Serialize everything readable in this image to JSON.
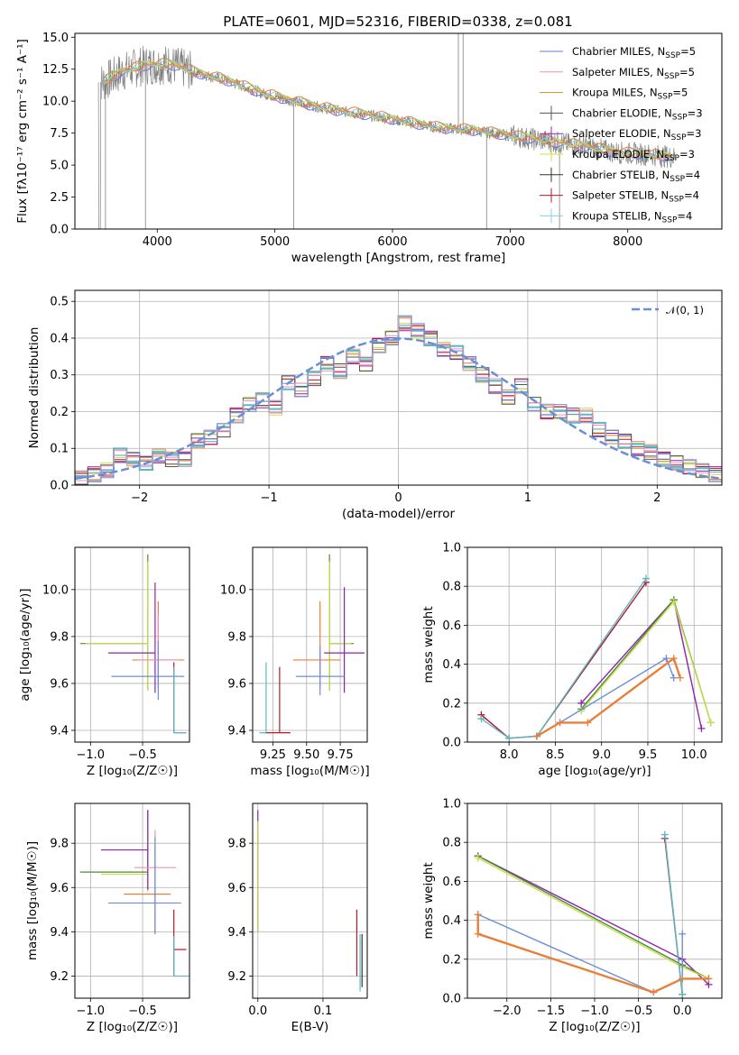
{
  "colors": {
    "chabrier_miles": "#5b7fd6",
    "salpeter_miles": "#f08fb3",
    "kroupa_miles": "#c9902d",
    "chabrier_elodie": "#555555",
    "salpeter_elodie": "#8e24aa",
    "kroupa_elodie": "#c8e04a",
    "chabrier_stelib": "#333333",
    "salpeter_stelib": "#b2182b",
    "kroupa_stelib": "#80d4e0",
    "normal": "#6a8fd8",
    "spectrum": "#808080",
    "orange": "#e8803a",
    "blue": "#6a8fd8",
    "purple": "#8e24aa",
    "yellow": "#c8e04a",
    "green": "#4e8a3a",
    "teal": "#5ab8c4"
  },
  "chart_data": [
    {
      "id": "spectrum",
      "type": "line",
      "title": "PLATE=0601, MJD=52316, FIBERID=0338, z=0.081",
      "xlabel": "wavelength [Angstrom, rest frame]",
      "ylabel": "Flux [fλ10⁻¹⁷ erg cm⁻² s⁻¹ A⁻¹]",
      "xlim": [
        3300,
        8800
      ],
      "ylim": [
        0,
        15.3
      ],
      "xticks": [
        4000,
        5000,
        6000,
        7000,
        8000
      ],
      "yticks": [
        0.0,
        2.5,
        5.0,
        7.5,
        10.0,
        12.5,
        15.0
      ],
      "ytick_labels": [
        "0.0",
        "2.5",
        "5.0",
        "7.5",
        "10.0",
        "12.5",
        "15.0"
      ],
      "legend": "top-right",
      "legend_entries": [
        "Chabrier MILES, N_SSP=5",
        "Salpeter MILES, N_SSP=5",
        "Kroupa MILES, N_SSP=5",
        "Chabrier ELODIE, N_SSP=3",
        "Salpeter ELODIE, N_SSP=3",
        "Kroupa ELODIE, N_SSP=3",
        "Chabrier STELIB, N_SSP=4",
        "Salpeter STELIB, N_SSP=4",
        "Kroupa STELIB, N_SSP=4"
      ],
      "model_x": [
        3550,
        3700,
        3900,
        4100,
        4300,
        4600,
        4900,
        5200,
        5500,
        5800,
        6100,
        6400,
        6700,
        7000,
        7300,
        7600,
        7900,
        8200,
        8400
      ],
      "model_y": [
        11.5,
        12.3,
        12.8,
        12.9,
        12.3,
        11.6,
        10.6,
        9.9,
        9.3,
        8.9,
        8.4,
        7.9,
        7.7,
        7.3,
        6.9,
        6.5,
        6.0,
        5.8,
        5.6
      ]
    },
    {
      "id": "residuals",
      "type": "line",
      "xlabel": "(data-model)/error",
      "ylabel": "Normed distribution",
      "xlim": [
        -2.5,
        2.5
      ],
      "ylim": [
        0,
        0.53
      ],
      "xticks": [
        -2,
        -1,
        0,
        1,
        2
      ],
      "xtick_labels": [
        "−2",
        "−1",
        "0",
        "1",
        "2"
      ],
      "yticks": [
        0.0,
        0.1,
        0.2,
        0.3,
        0.4,
        0.5
      ],
      "ytick_labels": [
        "0.0",
        "0.1",
        "0.2",
        "0.3",
        "0.4",
        "0.5"
      ],
      "legend": "top-right",
      "legend_entries": [
        "𝒩(0, 1)"
      ],
      "bin_edges": [
        -2.5,
        -2.4,
        -2.3,
        -2.2,
        -2.1,
        -2.0,
        -1.9,
        -1.8,
        -1.7,
        -1.6,
        -1.5,
        -1.4,
        -1.3,
        -1.2,
        -1.1,
        -1.0,
        -0.9,
        -0.8,
        -0.7,
        -0.6,
        -0.5,
        -0.4,
        -0.3,
        -0.2,
        -0.1,
        0.0,
        0.1,
        0.2,
        0.3,
        0.4,
        0.5,
        0.6,
        0.7,
        0.8,
        0.9,
        1.0,
        1.1,
        1.2,
        1.3,
        1.4,
        1.5,
        1.6,
        1.7,
        1.8,
        1.9,
        2.0,
        2.1,
        2.2,
        2.3,
        2.4,
        2.5
      ],
      "hist_values": [
        0.02,
        0.03,
        0.04,
        0.08,
        0.07,
        0.06,
        0.08,
        0.07,
        0.07,
        0.12,
        0.13,
        0.15,
        0.19,
        0.22,
        0.23,
        0.21,
        0.28,
        0.26,
        0.29,
        0.33,
        0.31,
        0.35,
        0.33,
        0.38,
        0.4,
        0.44,
        0.42,
        0.4,
        0.37,
        0.36,
        0.33,
        0.3,
        0.27,
        0.24,
        0.27,
        0.22,
        0.2,
        0.2,
        0.19,
        0.19,
        0.15,
        0.13,
        0.12,
        0.1,
        0.09,
        0.07,
        0.06,
        0.05,
        0.04,
        0.03
      ]
    },
    {
      "id": "age_vs_Z",
      "type": "scatter",
      "xlabel": "Z [log₁₀(Z/Z☉)]",
      "ylabel": "age  [log₁₀(age/yr)]",
      "xlim": [
        -1.15,
        -0.05
      ],
      "ylim": [
        9.35,
        10.18
      ],
      "xticks": [
        -1.0,
        -0.5
      ],
      "xtick_labels": [
        "−1.0",
        "−0.5"
      ],
      "yticks": [
        9.4,
        9.6,
        9.8,
        10.0
      ],
      "ytick_labels": [
        "9.4",
        "9.6",
        "9.8",
        "10.0"
      ],
      "points": [
        {
          "x": -0.45,
          "y": 9.77,
          "xerr": [
            0.65,
            0.0
          ],
          "yerr": [
            0.2,
            0.38
          ],
          "c": "green"
        },
        {
          "x": -0.45,
          "y": 9.77,
          "xerr": [
            0.6,
            0.0
          ],
          "yerr": [
            0.2,
            0.35
          ],
          "c": "yellow"
        },
        {
          "x": -0.38,
          "y": 9.73,
          "xerr": [
            0.45,
            0.0
          ],
          "yerr": [
            0.17,
            0.3
          ],
          "c": "purple"
        },
        {
          "x": -0.35,
          "y": 9.7,
          "xerr": [
            0.25,
            0.25
          ],
          "yerr": [
            0.12,
            0.25
          ],
          "c": "orange"
        },
        {
          "x": -0.35,
          "y": 9.7,
          "xerr": [
            0.2,
            0.2
          ],
          "yerr": [
            0.1,
            0.2
          ],
          "c": "salpeter_miles"
        },
        {
          "x": -0.35,
          "y": 9.63,
          "xerr": [
            0.45,
            0.25
          ],
          "yerr": [
            0.1,
            0.15
          ],
          "c": "blue"
        },
        {
          "x": -0.2,
          "y": 9.39,
          "xerr": [
            0.0,
            0.12
          ],
          "yerr": [
            0.0,
            0.3
          ],
          "c": "salpeter_stelib"
        },
        {
          "x": -0.2,
          "y": 9.39,
          "xerr": [
            0.0,
            0.12
          ],
          "yerr": [
            0.0,
            0.28
          ],
          "c": "teal"
        }
      ]
    },
    {
      "id": "age_vs_mass",
      "type": "scatter",
      "xlabel": "mass [log₁₀(M/M☉)]",
      "ylabel": "",
      "xlim": [
        9.1,
        9.95
      ],
      "ylim": [
        9.35,
        10.18
      ],
      "xticks": [
        9.25,
        9.5,
        9.75
      ],
      "xtick_labels": [
        "9.25",
        "9.50",
        "9.75"
      ],
      "yticks": [
        9.4,
        9.6,
        9.8,
        10.0
      ],
      "ytick_labels": [
        "9.4",
        "9.6",
        "9.8",
        "10.0"
      ],
      "points": [
        {
          "x": 9.67,
          "y": 9.77,
          "xerr": [
            0.0,
            0.18
          ],
          "yerr": [
            0.2,
            0.38
          ],
          "c": "green"
        },
        {
          "x": 9.67,
          "y": 9.77,
          "xerr": [
            0.0,
            0.16
          ],
          "yerr": [
            0.2,
            0.35
          ],
          "c": "yellow"
        },
        {
          "x": 9.78,
          "y": 9.73,
          "xerr": [
            0.15,
            0.15
          ],
          "yerr": [
            0.17,
            0.28
          ],
          "c": "purple"
        },
        {
          "x": 9.6,
          "y": 9.7,
          "xerr": [
            0.2,
            0.15
          ],
          "yerr": [
            0.12,
            0.25
          ],
          "c": "orange"
        },
        {
          "x": 9.6,
          "y": 9.63,
          "xerr": [
            0.18,
            0.18
          ],
          "yerr": [
            0.08,
            0.13
          ],
          "c": "blue"
        },
        {
          "x": 9.3,
          "y": 9.39,
          "xerr": [
            0.12,
            0.08
          ],
          "yerr": [
            0.0,
            0.28
          ],
          "c": "salpeter_stelib"
        },
        {
          "x": 9.2,
          "y": 9.39,
          "xerr": [
            0.05,
            0.0
          ],
          "yerr": [
            0.0,
            0.3
          ],
          "c": "teal"
        }
      ]
    },
    {
      "id": "weight_vs_age",
      "type": "line",
      "xlabel": "age  [log₁₀(age/yr)]",
      "ylabel": "mass weight",
      "xlim": [
        7.55,
        10.3
      ],
      "ylim": [
        0,
        1.0
      ],
      "xticks": [
        8.0,
        8.5,
        9.0,
        9.5,
        10.0
      ],
      "xtick_labels": [
        "8.0",
        "8.5",
        "9.0",
        "9.5",
        "10.0"
      ],
      "yticks": [
        0.0,
        0.2,
        0.4,
        0.6,
        0.8,
        1.0
      ],
      "ytick_labels": [
        "0.0",
        "0.2",
        "0.4",
        "0.6",
        "0.8",
        "1.0"
      ],
      "series": [
        {
          "c": "salpeter_stelib",
          "x": [
            7.7,
            8.0,
            8.3,
            9.48
          ],
          "y": [
            0.14,
            0.02,
            0.03,
            0.82
          ]
        },
        {
          "c": "teal",
          "x": [
            7.7,
            8.0,
            8.3,
            9.48
          ],
          "y": [
            0.12,
            0.02,
            0.03,
            0.84
          ]
        },
        {
          "c": "purple",
          "x": [
            8.78,
            9.78,
            10.08
          ],
          "y": [
            0.2,
            0.73,
            0.07
          ]
        },
        {
          "c": "green",
          "x": [
            8.78,
            9.78,
            10.18
          ],
          "y": [
            0.17,
            0.73,
            0.1
          ]
        },
        {
          "c": "yellow",
          "x": [
            8.78,
            9.78,
            10.18
          ],
          "y": [
            0.16,
            0.72,
            0.1
          ]
        },
        {
          "c": "blue",
          "x": [
            8.3,
            8.55,
            9.7,
            9.78
          ],
          "y": [
            0.03,
            0.1,
            0.43,
            0.33
          ]
        },
        {
          "c": "orange",
          "x": [
            8.3,
            8.55,
            8.85,
            9.78,
            9.85
          ],
          "y": [
            0.03,
            0.1,
            0.1,
            0.43,
            0.33
          ]
        }
      ]
    },
    {
      "id": "mass_vs_Z",
      "type": "scatter",
      "xlabel": "Z [log₁₀(Z/Z☉)]",
      "ylabel": "mass [log₁₀(M/M☉)]",
      "xlim": [
        -1.15,
        -0.05
      ],
      "ylim": [
        9.1,
        9.98
      ],
      "xticks": [
        -1.0,
        -0.5
      ],
      "xtick_labels": [
        "−1.0",
        "−0.5"
      ],
      "yticks": [
        9.2,
        9.4,
        9.6,
        9.8
      ],
      "ytick_labels": [
        "9.2",
        "9.4",
        "9.6",
        "9.8"
      ],
      "points": [
        {
          "x": -0.45,
          "y": 9.67,
          "xerr": [
            0.65,
            0.0
          ],
          "yerr": [
            0.08,
            0.28
          ],
          "c": "green"
        },
        {
          "x": -0.45,
          "y": 9.66,
          "xerr": [
            0.45,
            0.0
          ],
          "yerr": [
            0.08,
            0.25
          ],
          "c": "yellow"
        },
        {
          "x": -0.45,
          "y": 9.77,
          "xerr": [
            0.45,
            0.0
          ],
          "yerr": [
            0.18,
            0.18
          ],
          "c": "purple"
        },
        {
          "x": -0.38,
          "y": 9.69,
          "xerr": [
            0.2,
            0.2
          ],
          "yerr": [
            0.3,
            0.17
          ],
          "c": "salpeter_miles"
        },
        {
          "x": -0.38,
          "y": 9.57,
          "xerr": [
            0.3,
            0.15
          ],
          "yerr": [
            0.18,
            0.22
          ],
          "c": "orange"
        },
        {
          "x": -0.38,
          "y": 9.53,
          "xerr": [
            0.45,
            0.25
          ],
          "yerr": [
            0.14,
            0.3
          ],
          "c": "blue"
        },
        {
          "x": -0.2,
          "y": 9.32,
          "xerr": [
            0.0,
            0.12
          ],
          "yerr": [
            0.12,
            0.18
          ],
          "c": "salpeter_stelib"
        },
        {
          "x": -0.2,
          "y": 9.2,
          "xerr": [
            0.0,
            0.15
          ],
          "yerr": [
            0.0,
            0.18
          ],
          "c": "teal"
        }
      ]
    },
    {
      "id": "mass_vs_ebv",
      "type": "scatter",
      "xlabel": "E(B-V)",
      "ylabel": "",
      "xlim": [
        -0.008,
        0.168
      ],
      "ylim": [
        9.1,
        9.98
      ],
      "xticks": [
        0.0,
        0.1
      ],
      "xtick_labels": [
        "0.0",
        "0.1"
      ],
      "yticks": [
        9.2,
        9.4,
        9.6,
        9.8
      ],
      "ytick_labels": [
        "9.2",
        "9.4",
        "9.6",
        "9.8"
      ],
      "points": [
        {
          "x": 0.0,
          "y": 9.67,
          "xerr": [
            0,
            0
          ],
          "yerr": [
            0.27,
            0.28
          ],
          "c": "purple"
        },
        {
          "x": 0.0,
          "y": 9.66,
          "xerr": [
            0,
            0
          ],
          "yerr": [
            0.26,
            0.24
          ],
          "c": "yellow"
        },
        {
          "x": 0.152,
          "y": 9.3,
          "xerr": [
            0,
            0
          ],
          "yerr": [
            0.1,
            0.2
          ],
          "c": "salpeter_stelib"
        },
        {
          "x": 0.157,
          "y": 9.25,
          "xerr": [
            0,
            0
          ],
          "yerr": [
            0.12,
            0.14
          ],
          "c": "teal"
        },
        {
          "x": 0.16,
          "y": 9.25,
          "xerr": [
            0,
            0
          ],
          "yerr": [
            0.1,
            0.14
          ],
          "c": "chabrier_stelib"
        }
      ]
    },
    {
      "id": "weight_vs_Z",
      "type": "line",
      "xlabel": "Z [log₁₀(Z/Z☉)]",
      "ylabel": "mass weight",
      "xlim": [
        -2.45,
        0.45
      ],
      "ylim": [
        0,
        1.0
      ],
      "xticks": [
        -2.0,
        -1.5,
        -1.0,
        -0.5,
        0.0
      ],
      "xtick_labels": [
        "−2.0",
        "−1.5",
        "−1.0",
        "−0.5",
        "0.0"
      ],
      "yticks": [
        0.0,
        0.2,
        0.4,
        0.6,
        0.8,
        1.0
      ],
      "ytick_labels": [
        "0.0",
        "0.2",
        "0.4",
        "0.6",
        "0.8",
        "1.0"
      ],
      "series": [
        {
          "c": "purple",
          "x": [
            -2.33,
            0.0,
            0.3
          ],
          "y": [
            0.73,
            0.2,
            0.07
          ]
        },
        {
          "c": "green",
          "x": [
            -2.33,
            0.0,
            0.3
          ],
          "y": [
            0.73,
            0.17,
            0.1
          ]
        },
        {
          "c": "yellow",
          "x": [
            -2.33,
            0.0,
            0.3
          ],
          "y": [
            0.72,
            0.16,
            0.1
          ]
        },
        {
          "c": "blue",
          "x": [
            -2.33,
            -0.33,
            0.0,
            0.0
          ],
          "y": [
            0.43,
            0.03,
            0.1,
            0.33
          ]
        },
        {
          "c": "orange",
          "x": [
            -2.33,
            -2.33,
            -0.33,
            0.0,
            0.3
          ],
          "y": [
            0.43,
            0.33,
            0.03,
            0.1,
            0.1
          ]
        },
        {
          "c": "salpeter_stelib",
          "x": [
            -0.2,
            0.0
          ],
          "y": [
            0.82,
            0.02
          ]
        },
        {
          "c": "teal",
          "x": [
            -0.2,
            0.0
          ],
          "y": [
            0.84,
            0.02
          ]
        }
      ]
    }
  ]
}
